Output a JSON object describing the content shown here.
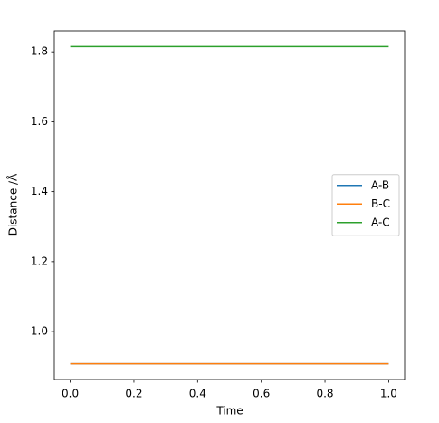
{
  "chart_data": {
    "type": "line",
    "x_label": "Time",
    "y_label": "Distance /Å",
    "x": [
      0,
      1
    ],
    "series": [
      {
        "name": "A-B",
        "color": "#1f77b4",
        "values": [
          0.908,
          0.908
        ]
      },
      {
        "name": "B-C",
        "color": "#ff7f0e",
        "values": [
          0.908,
          0.908
        ]
      },
      {
        "name": "A-C",
        "color": "#2ca02c",
        "values": [
          1.815,
          1.815
        ]
      }
    ],
    "xlim": [
      -0.05,
      1.05
    ],
    "xticks": [
      {
        "value": 0,
        "label": "0.0"
      },
      {
        "value": 0.2,
        "label": "0.2"
      },
      {
        "value": 0.4,
        "label": "0.4"
      },
      {
        "value": 0.6,
        "label": "0.6"
      },
      {
        "value": 0.8,
        "label": "0.8"
      },
      {
        "value": 1,
        "label": "1.0"
      }
    ],
    "ylim": [
      0.863,
      1.86
    ],
    "yticks": [
      {
        "value": 1,
        "label": "1.0"
      },
      {
        "value": 1.2,
        "label": "1.2"
      },
      {
        "value": 1.4,
        "label": "1.4"
      },
      {
        "value": 1.6,
        "label": "1.6"
      },
      {
        "value": 1.8,
        "label": "1.8"
      }
    ],
    "legend": "center right"
  }
}
